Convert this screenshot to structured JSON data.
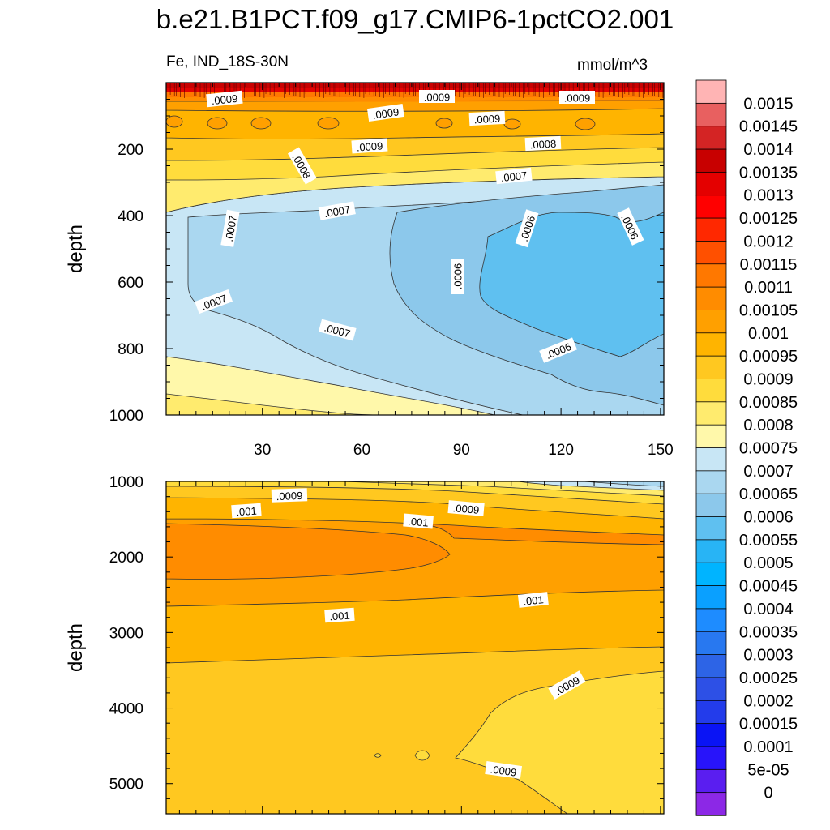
{
  "chart_data": {
    "type": "heatmap",
    "title": "b.e21.B1PCT.f09_g17.CMIP6-1pctCO2.001",
    "variable_label": "Fe, IND_18S-30N",
    "units_label": "mmol/m^3",
    "top_panel": {
      "ylabel": "depth",
      "ylim": [
        0,
        1000
      ],
      "yticks": [
        "200",
        "400",
        "600",
        "800",
        "1000"
      ],
      "xlim": [
        1,
        151
      ],
      "xticks": [
        "30",
        "60",
        "90",
        "120",
        "150"
      ],
      "contour_labels": [
        ".0009",
        ".0009",
        ".0009",
        ".0009",
        ".0009",
        ".0009",
        ".0008",
        ".0008",
        ".0007",
        ".0007",
        ".0007",
        ".0007",
        ".0007",
        ".0006",
        ".0006",
        ".0006",
        ".0006"
      ]
    },
    "bottom_panel": {
      "ylabel": "depth",
      "ylim": [
        1000,
        5400
      ],
      "yticks": [
        "1000",
        "2000",
        "3000",
        "4000",
        "5000"
      ],
      "xlim": [
        1,
        151
      ],
      "contour_labels": [
        ".0009",
        ".001",
        ".0009",
        ".001",
        ".001",
        ".001",
        ".0009",
        ".0009"
      ]
    },
    "colorbar": {
      "levels": [
        "0.0015",
        "0.00145",
        "0.0014",
        "0.00135",
        "0.0013",
        "0.00125",
        "0.0012",
        "0.00115",
        "0.0011",
        "0.00105",
        "0.001",
        "0.00095",
        "0.0009",
        "0.00085",
        "0.0008",
        "0.00075",
        "0.0007",
        "0.00065",
        "0.0006",
        "0.00055",
        "0.0005",
        "0.00045",
        "0.0004",
        "0.00035",
        "0.0003",
        "0.00025",
        "0.0002",
        "0.00015",
        "0.0001",
        "5e-05",
        "0"
      ],
      "colors": [
        "#FFB4B4",
        "#E86060",
        "#D42424",
        "#C80000",
        "#E40000",
        "#FF0000",
        "#FF2800",
        "#FF5000",
        "#FF7800",
        "#FF8C00",
        "#FFA000",
        "#FFB400",
        "#FFC820",
        "#FFDC3C",
        "#FFEB6E",
        "#FFF8AA",
        "#C8E6F5",
        "#AAD7F0",
        "#8CC8EB",
        "#5FC0F0",
        "#28B4F5",
        "#00B4FF",
        "#0AA0FF",
        "#1E8CFF",
        "#2878F0",
        "#2D64E6",
        "#2D50E6",
        "#233CEB",
        "#0A14F5",
        "#2814FA",
        "#5A1EF0",
        "#8C28E6"
      ]
    }
  }
}
